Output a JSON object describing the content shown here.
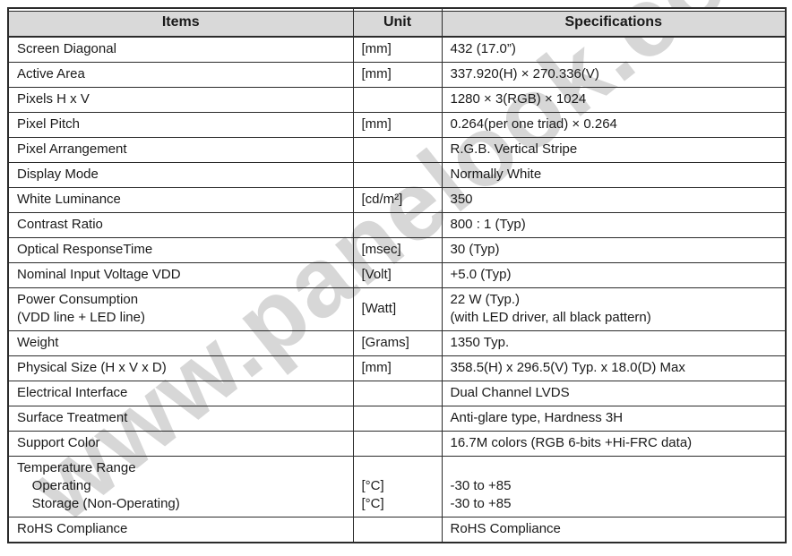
{
  "watermark": "www.panelook.com",
  "colors": {
    "header_bg": "#d9d9d9",
    "border": "#2b2b2b",
    "text": "#1a1a1a",
    "watermark": "rgba(150,150,150,0.38)"
  },
  "table": {
    "headers": [
      "Items",
      "Unit",
      "Specifications"
    ],
    "rows": [
      {
        "item": "Screen Diagonal",
        "unit": "[mm]",
        "spec": "432 (17.0”)"
      },
      {
        "item": "Active Area",
        "unit": "[mm]",
        "spec": "337.920(H) × 270.336(V)"
      },
      {
        "item": "Pixels H x V",
        "unit": "",
        "spec": "1280 × 3(RGB) × 1024"
      },
      {
        "item": "Pixel Pitch",
        "unit": "[mm]",
        "spec": "0.264(per one triad) × 0.264"
      },
      {
        "item": "Pixel Arrangement",
        "unit": "",
        "spec": "R.G.B. Vertical Stripe"
      },
      {
        "item": "Display Mode",
        "unit": "",
        "spec": "Normally White"
      },
      {
        "item": "White Luminance",
        "unit": "[cd/m²]",
        "spec": "350"
      },
      {
        "item": "Contrast Ratio",
        "unit": "",
        "spec": "800 : 1 (Typ)"
      },
      {
        "item": "Optical ResponseTime",
        "unit": "[msec]",
        "spec": "30 (Typ)"
      },
      {
        "item": "Nominal Input Voltage VDD",
        "unit": "[Volt]",
        "spec": "+5.0 (Typ)"
      },
      {
        "item": "Power Consumption\n(VDD line + LED line)",
        "unit": "[Watt]",
        "spec": "22 W (Typ.)\n(with LED driver, all black pattern)"
      },
      {
        "item": "Weight",
        "unit": "[Grams]",
        "spec": "1350 Typ."
      },
      {
        "item": "Physical Size (H x V x D)",
        "unit": "[mm]",
        "spec": "358.5(H) x 296.5(V) Typ. x 18.0(D) Max"
      },
      {
        "item": "Electrical Interface",
        "unit": "",
        "spec": "Dual Channel LVDS"
      },
      {
        "item": "Surface Treatment",
        "unit": "",
        "spec": "Anti-glare type, Hardness 3H"
      },
      {
        "item": "Support Color",
        "unit": "",
        "spec": "16.7M colors (RGB 6-bits +Hi-FRC data)"
      },
      {
        "item": "Temperature Range\n    Operating\n    Storage (Non-Operating)",
        "unit": "\n[°C]\n[°C]",
        "spec": "\n-30 to +85\n-30 to +85"
      },
      {
        "item": "RoHS Compliance",
        "unit": "",
        "spec": "RoHS Compliance"
      }
    ]
  }
}
